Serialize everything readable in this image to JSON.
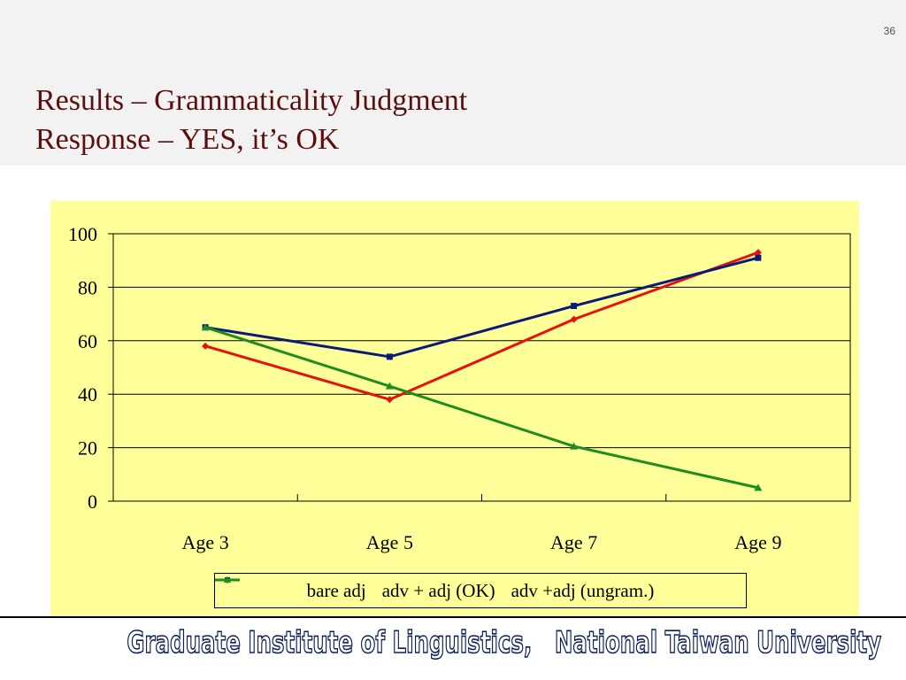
{
  "slide": {
    "page_number": "36",
    "title_line1": "Results – Grammaticality Judgment",
    "title_line2": "Response – YES, it’s OK",
    "footer": "Graduate Institute of Linguistics,   National Taiwan University"
  },
  "colors": {
    "title": "#5c0f0f",
    "chart_background": "#ffff99",
    "bare_adj": "#e8100c",
    "adv_adj_ok": "#0a1a7a",
    "adv_adj_ungram": "#1e8c1e",
    "footer_outline": "#0a1f5c"
  },
  "chart_data": {
    "type": "line",
    "categories": [
      "Age 3",
      "Age 5",
      "Age 7",
      "Age 9"
    ],
    "ylim": [
      0,
      100
    ],
    "yticks": [
      0,
      20,
      40,
      60,
      80,
      100
    ],
    "ytick_labels": [
      "0",
      "20",
      "40",
      "60",
      "80",
      "100"
    ],
    "grid": true,
    "legend_position": "bottom",
    "series": [
      {
        "name": "bare adj",
        "values": [
          58,
          38,
          68,
          93
        ],
        "color": "#e8100c",
        "marker": "diamond"
      },
      {
        "name": "adv + adj (OK)",
        "values": [
          65,
          54,
          73,
          91
        ],
        "color": "#0a1a7a",
        "marker": "square"
      },
      {
        "name": "adv +adj (ungram.)",
        "values": [
          65,
          43,
          20.5,
          5
        ],
        "color": "#1e8c1e",
        "marker": "triangle"
      }
    ]
  }
}
